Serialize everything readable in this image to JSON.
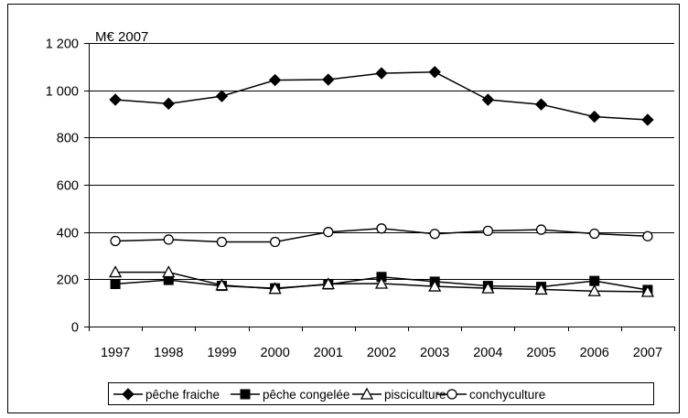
{
  "chart_data": {
    "type": "line",
    "unit_label": "M€ 2007",
    "categories": [
      "1997",
      "1998",
      "1999",
      "2000",
      "2001",
      "2002",
      "2003",
      "2004",
      "2005",
      "2006",
      "2007"
    ],
    "ylim": [
      0,
      1200
    ],
    "yticks": [
      0,
      200,
      400,
      600,
      800,
      1000,
      1200
    ],
    "ytick_labels": [
      "0",
      "200",
      "400",
      "600",
      "800",
      "1 000",
      "1 200"
    ],
    "grid": "horizontal",
    "legend_position": "bottom",
    "series": [
      {
        "name": "pêche fraiche",
        "marker": "filled-diamond",
        "values": [
          960,
          943,
          975,
          1043,
          1045,
          1072,
          1077,
          960,
          940,
          888,
          875
        ]
      },
      {
        "name": "pêche congelée",
        "marker": "filled-square",
        "values": [
          180,
          197,
          172,
          162,
          178,
          210,
          190,
          172,
          168,
          193,
          155
        ]
      },
      {
        "name": "pisciculture",
        "marker": "open-triangle",
        "values": [
          230,
          230,
          175,
          160,
          180,
          182,
          170,
          162,
          157,
          150,
          147
        ]
      },
      {
        "name": "conchyculture",
        "marker": "open-circle",
        "values": [
          362,
          368,
          358,
          358,
          400,
          415,
          392,
          405,
          410,
          393,
          382
        ]
      }
    ]
  }
}
